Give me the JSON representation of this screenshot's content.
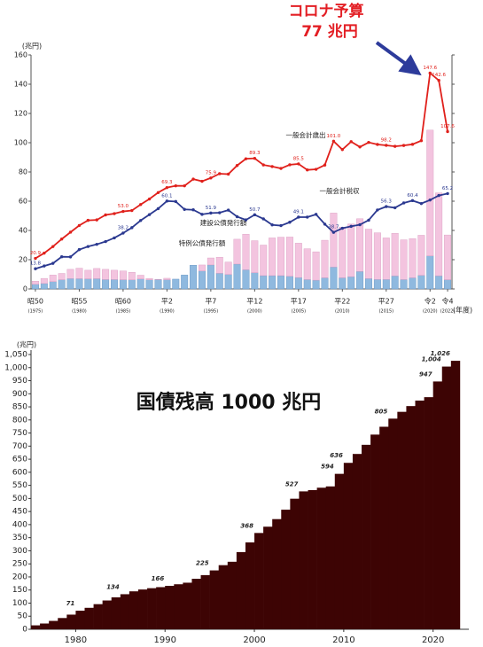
{
  "chart_data": [
    {
      "type": "combo",
      "annotation_lines": [
        "コロナ予算",
        "77 兆円"
      ],
      "ylabel": "(兆円)",
      "xlabel": "(年度)",
      "ylim": [
        0,
        160
      ],
      "yticks": [
        0,
        20,
        40,
        60,
        80,
        100,
        120,
        140,
        160
      ],
      "categories": [
        "昭50",
        null,
        null,
        null,
        null,
        "昭55",
        null,
        null,
        null,
        null,
        "昭60",
        null,
        null,
        null,
        null,
        "平2",
        null,
        null,
        null,
        null,
        "平7",
        null,
        null,
        null,
        null,
        "平12",
        null,
        null,
        null,
        null,
        "平17",
        null,
        null,
        null,
        null,
        "平22",
        null,
        null,
        null,
        null,
        "平27",
        null,
        null,
        null,
        null,
        "令2",
        null,
        "令4"
      ],
      "category_years": [
        "(1975)",
        null,
        null,
        null,
        null,
        "(1980)",
        null,
        null,
        null,
        null,
        "(1985)",
        null,
        null,
        null,
        null,
        "(1990)",
        null,
        null,
        null,
        null,
        "(1995)",
        null,
        null,
        null,
        null,
        "(2000)",
        null,
        null,
        null,
        null,
        "(2005)",
        null,
        null,
        null,
        null,
        "(2010)",
        null,
        null,
        null,
        null,
        "(2015)",
        null,
        null,
        null,
        null,
        "(2020)",
        null,
        "(2022)"
      ],
      "series": [
        {
          "name": "建設公債発行額",
          "type": "bar",
          "color": "#8fb9df",
          "values": [
            3.2,
            3.7,
            5.0,
            6.3,
            7.1,
            7.0,
            6.9,
            7.0,
            6.4,
            6.4,
            6.3,
            6.2,
            6.8,
            6.2,
            6.4,
            6.3,
            6.7,
            9.5,
            16.2,
            12.3,
            16.4,
            10.7,
            9.9,
            17.0,
            13.1,
            11.1,
            9.1,
            9.1,
            9.1,
            8.7,
            7.8,
            6.4,
            6.0,
            7.6,
            15.0,
            7.6,
            8.4,
            12.0,
            7.1,
            6.5,
            6.5,
            8.9,
            6.4,
            7.6,
            9.3,
            22.6,
            9.0,
            6.3
          ]
        },
        {
          "name": "特例公債発行額",
          "type": "bar",
          "color": "#f3c4df",
          "values": [
            2.1,
            3.5,
            4.5,
            4.3,
            6.3,
            7.2,
            5.9,
            7.0,
            7.0,
            6.4,
            6.0,
            5.2,
            2.6,
            1.0,
            0.2,
            1.0,
            0,
            0,
            0,
            4.1,
            4.8,
            11.0,
            8.5,
            17.0,
            24.3,
            21.9,
            20.9,
            25.8,
            26.3,
            26.8,
            23.5,
            21.1,
            19.4,
            25.7,
            36.9,
            34.7,
            36.0,
            36.0,
            33.8,
            31.9,
            28.4,
            29.1,
            27.2,
            26.8,
            27.4,
            86.0,
            56.7,
            30.6
          ]
        },
        {
          "name": "一般会計歳出",
          "type": "line",
          "color": "#e0201b",
          "values": [
            20.9,
            24.5,
            29.0,
            34.1,
            38.8,
            43.4,
            46.9,
            47.2,
            50.6,
            51.5,
            53.0,
            53.6,
            57.7,
            61.5,
            65.9,
            69.3,
            70.5,
            70.5,
            75.1,
            73.6,
            75.9,
            78.8,
            78.5,
            84.4,
            89.0,
            89.3,
            84.8,
            83.7,
            82.4,
            84.9,
            85.5,
            81.4,
            81.8,
            84.7,
            101.0,
            95.3,
            100.7,
            97.1,
            100.2,
            98.8,
            98.2,
            97.5,
            98.1,
            98.9,
            101.4,
            147.6,
            142.6,
            107.6
          ],
          "value_labels": [
            "20.9",
            null,
            null,
            null,
            null,
            null,
            null,
            null,
            null,
            null,
            "53.0",
            null,
            null,
            null,
            null,
            "69.3",
            null,
            null,
            null,
            null,
            "75.9",
            null,
            null,
            null,
            null,
            "89.3",
            null,
            null,
            null,
            null,
            "85.5",
            null,
            null,
            null,
            "101.0",
            null,
            null,
            null,
            null,
            null,
            "98.2",
            null,
            null,
            null,
            null,
            "147.6",
            "142.6",
            "107.6"
          ]
        },
        {
          "name": "一般会計税収",
          "type": "line",
          "color": "#2b3990",
          "values": [
            13.8,
            15.7,
            17.5,
            22.0,
            21.9,
            26.9,
            29.0,
            30.5,
            32.4,
            34.9,
            38.2,
            41.9,
            46.8,
            50.8,
            54.9,
            60.1,
            59.8,
            54.4,
            54.1,
            51.0,
            51.9,
            52.1,
            53.9,
            49.4,
            47.2,
            50.7,
            47.9,
            43.8,
            43.3,
            45.6,
            49.1,
            49.1,
            51.0,
            44.3,
            38.7,
            41.5,
            42.8,
            43.9,
            47.0,
            54.0,
            56.3,
            55.5,
            58.8,
            60.4,
            58.4,
            60.8,
            63.9,
            65.2
          ],
          "value_labels": [
            "13.8",
            null,
            null,
            null,
            null,
            null,
            null,
            null,
            null,
            null,
            "38.2",
            null,
            null,
            null,
            null,
            "60.1",
            null,
            null,
            null,
            null,
            "51.9",
            null,
            null,
            null,
            null,
            "50.7",
            null,
            null,
            null,
            null,
            "49.1",
            null,
            null,
            null,
            "38.7",
            null,
            null,
            null,
            null,
            null,
            "56.3",
            null,
            null,
            "60.4",
            null,
            null,
            null,
            "65.2"
          ]
        }
      ]
    },
    {
      "type": "bar",
      "title": "国債残高 1000 兆円",
      "ylabel": "(兆円)",
      "color": "#3d0404",
      "xlim": [
        1975,
        2024
      ],
      "xticks": [
        1980,
        1990,
        2000,
        2010,
        2020
      ],
      "ylim": [
        0,
        1050
      ],
      "yticks": [
        0,
        50,
        100,
        150,
        200,
        250,
        300,
        350,
        400,
        450,
        500,
        550,
        600,
        650,
        700,
        750,
        800,
        850,
        900,
        950,
        {
          "value": 1000,
          "label": "1,000"
        },
        {
          "value": 1050,
          "label": "1,050"
        }
      ],
      "x": [
        1975,
        1976,
        1977,
        1978,
        1979,
        1980,
        1981,
        1982,
        1983,
        1984,
        1985,
        1986,
        1987,
        1988,
        1989,
        1990,
        1991,
        1992,
        1993,
        1994,
        1995,
        1996,
        1997,
        1998,
        1999,
        2000,
        2001,
        2002,
        2003,
        2004,
        2005,
        2006,
        2007,
        2008,
        2009,
        2010,
        2011,
        2012,
        2013,
        2014,
        2015,
        2016,
        2017,
        2018,
        2019,
        2020,
        2021,
        2022
      ],
      "values": [
        15,
        22,
        32,
        43,
        56,
        71,
        82,
        96,
        110,
        122,
        134,
        145,
        152,
        157,
        161,
        166,
        172,
        178,
        193,
        207,
        225,
        245,
        258,
        295,
        332,
        368,
        392,
        421,
        457,
        499,
        527,
        532,
        541,
        546,
        594,
        636,
        670,
        705,
        744,
        774,
        805,
        831,
        853,
        874,
        887,
        947,
        1004,
        1026
      ],
      "value_labels": [
        null,
        null,
        null,
        null,
        null,
        "71",
        null,
        null,
        null,
        null,
        "134",
        null,
        null,
        null,
        null,
        "166",
        null,
        null,
        null,
        null,
        "225",
        null,
        null,
        null,
        null,
        "368",
        null,
        null,
        null,
        null,
        "527",
        null,
        null,
        null,
        "594",
        "636",
        null,
        null,
        null,
        null,
        "805",
        null,
        null,
        null,
        null,
        "947",
        "1,004",
        "1,026"
      ]
    }
  ]
}
